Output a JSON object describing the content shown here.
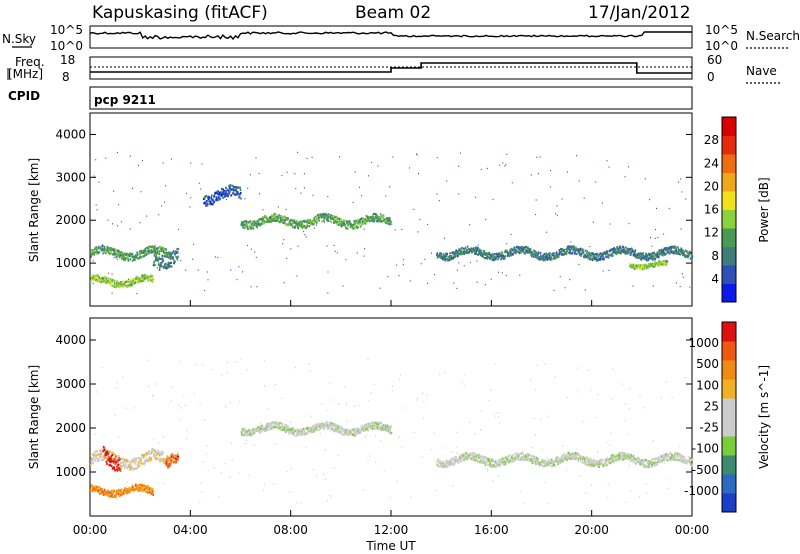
{
  "header": {
    "station": "Kapuskasing (fitACF)",
    "beam": "Beam 02",
    "date": "17/Jan/2012"
  },
  "panels": {
    "nsky_label": "N.Sky",
    "nsearch_label": "N.Search",
    "freq_label_top": "Freq.",
    "freq_label_unit": "[MHz]",
    "nave_label": "Nave",
    "cpid_label": "CPID",
    "cpid_value": "pcp 9211",
    "noise_ticks_left": [
      "10^5",
      "10^0"
    ],
    "noise_ticks_right": [
      "10^5",
      "10^0"
    ],
    "freq_ticks": [
      "18",
      "8"
    ],
    "nave_ticks": [
      "60",
      "0"
    ]
  },
  "chart_data": [
    {
      "type": "heatmap",
      "title": "",
      "ylabel": "Slant Range [km]",
      "xlabel": "",
      "ylim": [
        0,
        4500
      ],
      "y_ticks": [
        "1000",
        "2000",
        "3000",
        "4000"
      ],
      "colorbar": {
        "label": "Power [dB]",
        "ticks": [
          "4",
          "8",
          "12",
          "16",
          "20",
          "24",
          "28"
        ],
        "colors": [
          "#0a1ae8",
          "#2c4fb8",
          "#3f7d7a",
          "#4a9a55",
          "#8ad13c",
          "#f2e01c",
          "#f0a81a",
          "#ee6d10",
          "#e52b0a",
          "#d90000"
        ]
      },
      "bands": [
        {
          "start_hr": 0.0,
          "end_hr": 3.2,
          "range_km": 1250,
          "thickness_km": 180,
          "level": 3
        },
        {
          "start_hr": 0.0,
          "end_hr": 2.5,
          "range_km": 600,
          "thickness_km": 150,
          "level": 4
        },
        {
          "start_hr": 2.5,
          "end_hr": 3.5,
          "range_km": 1200,
          "thickness_km": 350,
          "level": 2
        },
        {
          "start_hr": 4.5,
          "end_hr": 6.0,
          "range_km": 2600,
          "thickness_km": 250,
          "level": 1
        },
        {
          "start_hr": 6.0,
          "end_hr": 12.0,
          "range_km": 2000,
          "thickness_km": 180,
          "level": 3
        },
        {
          "start_hr": 13.8,
          "end_hr": 24.0,
          "range_km": 1250,
          "thickness_km": 170,
          "level": 2
        },
        {
          "start_hr": 21.5,
          "end_hr": 23.0,
          "range_km": 980,
          "thickness_km": 100,
          "level": 4
        }
      ]
    },
    {
      "type": "heatmap",
      "title": "",
      "ylabel": "Slant Range [km]",
      "xlabel": "Time UT",
      "ylim": [
        0,
        4500
      ],
      "y_ticks": [
        "1000",
        "2000",
        "3000",
        "4000"
      ],
      "x_ticks": [
        "00:00",
        "04:00",
        "08:00",
        "12:00",
        "16:00",
        "20:00",
        "00:00"
      ],
      "colorbar": {
        "label": "Velocity [m s^-1]",
        "ticks": [
          "1000",
          "500",
          "100",
          "25",
          "-25",
          "-100",
          "-500",
          "-1000"
        ],
        "colors": [
          "#1a3ec8",
          "#2a6ac0",
          "#3d8a70",
          "#7acc3a",
          "#cccccc",
          "#cccccc",
          "#f0b020",
          "#f08a10",
          "#f05a10",
          "#e01010"
        ]
      },
      "bands": [
        {
          "start_hr": 0.0,
          "end_hr": 3.2,
          "range_km": 1300,
          "thickness_km": 250,
          "level": 5
        },
        {
          "start_hr": 0.5,
          "end_hr": 1.2,
          "range_km": 1350,
          "thickness_km": 350,
          "level": 9
        },
        {
          "start_hr": 0.0,
          "end_hr": 2.5,
          "range_km": 600,
          "thickness_km": 150,
          "level": 7
        },
        {
          "start_hr": 3.0,
          "end_hr": 3.5,
          "range_km": 1250,
          "thickness_km": 250,
          "level": 8
        },
        {
          "start_hr": 6.0,
          "end_hr": 12.0,
          "range_km": 2000,
          "thickness_km": 160,
          "level": 4
        },
        {
          "start_hr": 13.8,
          "end_hr": 24.0,
          "range_km": 1300,
          "thickness_km": 170,
          "level": 4
        }
      ]
    }
  ],
  "colors": {
    "axis": "#000000",
    "trace": "#000000",
    "background": "#ffffff"
  }
}
